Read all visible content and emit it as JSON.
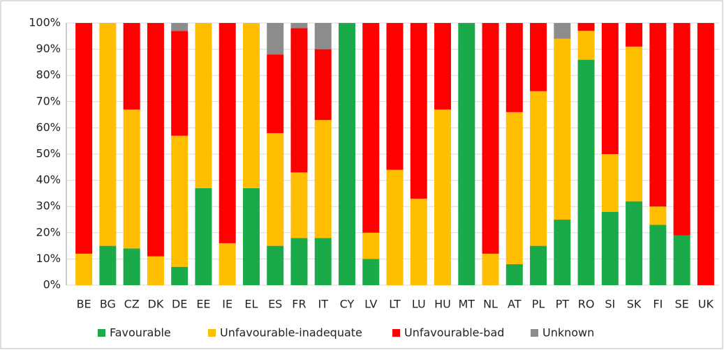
{
  "chart_data": {
    "type": "stacked_bar",
    "categories": [
      "BE",
      "BG",
      "CZ",
      "DK",
      "DE",
      "EE",
      "IE",
      "EL",
      "ES",
      "FR",
      "IT",
      "CY",
      "LV",
      "LT",
      "LU",
      "HU",
      "MT",
      "NL",
      "AT",
      "PL",
      "PT",
      "RO",
      "SI",
      "SK",
      "FI",
      "SE",
      "UK"
    ],
    "series": [
      {
        "name": "Favourable",
        "color": "#1aaa4a",
        "values": [
          0,
          15,
          14,
          0,
          7,
          37,
          0,
          37,
          15,
          18,
          18,
          100,
          10,
          0,
          0,
          0,
          100,
          0,
          8,
          15,
          25,
          86,
          28,
          32,
          23,
          19,
          0
        ]
      },
      {
        "name": "Unfavourable-inadequate",
        "color": "#ffbf00",
        "values": [
          12,
          85,
          53,
          11,
          50,
          63,
          16,
          63,
          43,
          25,
          45,
          0,
          10,
          44,
          33,
          67,
          0,
          12,
          58,
          59,
          69,
          11,
          22,
          59,
          7,
          0,
          0
        ]
      },
      {
        "name": "Unfavourable-bad",
        "color": "#ff0000",
        "values": [
          88,
          0,
          33,
          89,
          40,
          0,
          84,
          0,
          30,
          55,
          27,
          0,
          80,
          56,
          67,
          33,
          0,
          88,
          34,
          26,
          0,
          3,
          50,
          9,
          70,
          81,
          100
        ]
      },
      {
        "name": "Unknown",
        "color": "#8c8c8c",
        "values": [
          0,
          0,
          0,
          0,
          3,
          0,
          0,
          0,
          12,
          2,
          10,
          0,
          0,
          0,
          0,
          0,
          0,
          0,
          0,
          0,
          6,
          0,
          0,
          0,
          0,
          0,
          0
        ]
      }
    ],
    "ylim": [
      0,
      100
    ],
    "yticks": [
      {
        "value": 0,
        "label": "0%"
      },
      {
        "value": 10,
        "label": "10%"
      },
      {
        "value": 20,
        "label": "20%"
      },
      {
        "value": 30,
        "label": "30%"
      },
      {
        "value": 40,
        "label": "40%"
      },
      {
        "value": 50,
        "label": "50%"
      },
      {
        "value": 60,
        "label": "60%"
      },
      {
        "value": 70,
        "label": "70%"
      },
      {
        "value": 80,
        "label": "80%"
      },
      {
        "value": 90,
        "label": "90%"
      },
      {
        "value": 100,
        "label": "100%"
      }
    ],
    "grid": true,
    "legend": "bottom"
  }
}
